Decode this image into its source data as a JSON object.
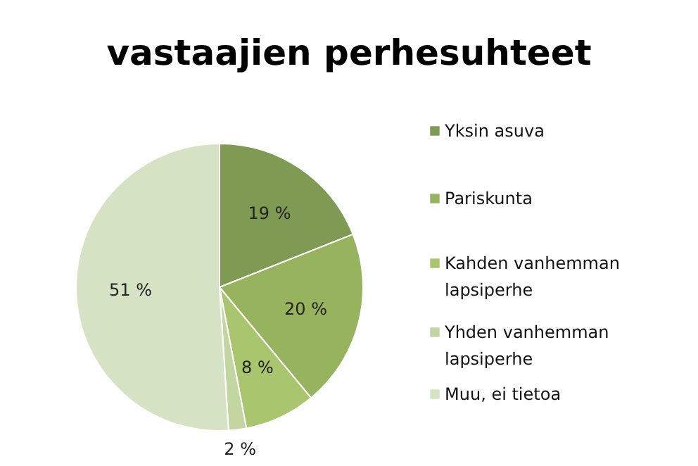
{
  "chart_data": {
    "type": "pie",
    "title": "vastaajien perhesuhteet",
    "categories": [
      "Yksin asuva",
      "Pariskunta",
      "Kahden vanhemman lapsiperhe",
      "Yhden vanhemman lapsiperhe",
      "Muu, ei tietoa"
    ],
    "values": [
      19,
      20,
      8,
      2,
      51
    ],
    "colors": [
      "#7f9a52",
      "#98b35e",
      "#a9c56d",
      "#c3d5a0",
      "#d6e2c4"
    ],
    "value_labels": [
      "19 %",
      "20 %",
      "8 %",
      "2 %",
      "51 %"
    ],
    "legend": "right"
  }
}
